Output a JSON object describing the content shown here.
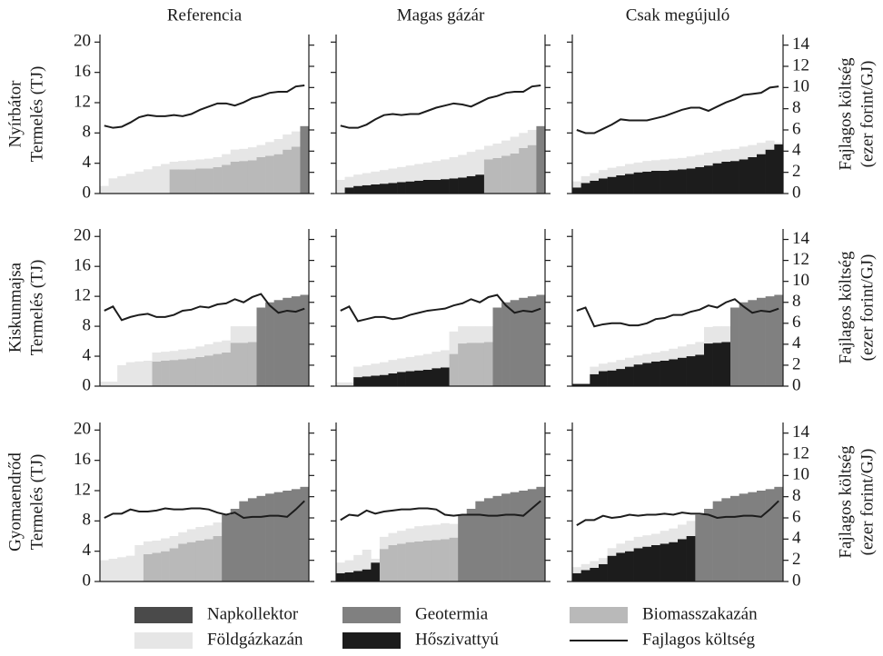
{
  "chart_data": {
    "type": "stacked-step-grid",
    "columns": [
      "Referencia",
      "Magas gázár",
      "Csak megújuló"
    ],
    "rows": [
      "Nyírbátor",
      "Kiskunmajsa",
      "Gyomaendrőd"
    ],
    "ylabel": "Termelés (TJ)",
    "y2label": [
      "Fajlagos költség",
      "(ezer forint/GJ)"
    ],
    "ylim": [
      0,
      21
    ],
    "yticks": [
      0,
      4,
      8,
      12,
      16,
      20
    ],
    "y2lim": [
      0,
      15
    ],
    "y2ticks": [
      0,
      2,
      4,
      6,
      8,
      10,
      12,
      14
    ],
    "legend": [
      {
        "name": "Napkollektor",
        "color": "#4a4a4a"
      },
      {
        "name": "Geotermia",
        "color": "#808080"
      },
      {
        "name": "Biomasszakazán",
        "color": "#b9b9b9"
      },
      {
        "name": "Földgázkazán",
        "color": "#e6e6e6"
      },
      {
        "name": "Hőszivattyú",
        "color": "#1c1c1c"
      },
      {
        "name": "Fajlagos költség",
        "color": "#1c1c1c",
        "line": true
      }
    ],
    "panels": [
      {
        "runs": [
          {
            "series": 3,
            "values": [
              1.0,
              2.0,
              2.3,
              2.6,
              2.9,
              3.2,
              3.6,
              3.9
            ]
          },
          {
            "series": 2,
            "values": [
              3.2,
              3.2,
              3.2,
              3.3,
              3.3,
              3.5,
              3.8,
              4.2,
              4.3,
              4.4,
              4.8,
              5.0,
              5.2,
              5.8,
              6.2
            ],
            "top_series": 3,
            "top": [
              1.0,
              1.1,
              1.2,
              1.2,
              1.3,
              1.3,
              1.4,
              1.6,
              1.6,
              1.7,
              1.6,
              1.8,
              2.0,
              2.0,
              2.0
            ]
          },
          {
            "series": 1,
            "values": [
              8.9
            ]
          }
        ],
        "cost": [
          6.4,
          6.2,
          6.3,
          6.7,
          7.2,
          7.4,
          7.3,
          7.3,
          7.4,
          7.3,
          7.5,
          7.9,
          8.2,
          8.5,
          8.5,
          8.3,
          8.6,
          9.0,
          9.2,
          9.5,
          9.6,
          9.6,
          10.1,
          10.2
        ]
      },
      {
        "runs": [
          {
            "series": 3,
            "values": [
              1.8
            ]
          },
          {
            "series": 4,
            "values": [
              0.8,
              1.0,
              1.1,
              1.2,
              1.3,
              1.4,
              1.5,
              1.6,
              1.7,
              1.8,
              1.8,
              1.9,
              2.0,
              2.1,
              2.3,
              2.5
            ],
            "top_series": 3,
            "top": [
              1.4,
              1.5,
              1.6,
              1.7,
              1.8,
              1.9,
              2.0,
              2.1,
              2.2,
              2.3,
              2.5,
              2.6,
              2.8,
              3.0,
              3.2,
              3.3
            ]
          },
          {
            "series": 2,
            "values": [
              4.5,
              4.7,
              5.0,
              5.3,
              6.0,
              6.4
            ],
            "top_series": 3,
            "top": [
              1.8,
              1.9,
              2.0,
              2.2,
              2.0,
              2.0
            ]
          },
          {
            "series": 1,
            "values": [
              8.9
            ]
          }
        ],
        "cost": [
          6.4,
          6.2,
          6.2,
          6.5,
          7.0,
          7.4,
          7.5,
          7.4,
          7.5,
          7.5,
          7.8,
          8.1,
          8.3,
          8.5,
          8.4,
          8.2,
          8.6,
          9.0,
          9.2,
          9.5,
          9.6,
          9.6,
          10.1,
          10.2
        ]
      },
      {
        "runs": [
          {
            "series": 4,
            "values": [
              0.8,
              1.4,
              1.7,
              2.0,
              2.2,
              2.4,
              2.6,
              2.8,
              2.9,
              3.0,
              3.0,
              3.1,
              3.2,
              3.3,
              3.5,
              3.7,
              4.0,
              4.2,
              4.3,
              4.5,
              4.8,
              5.2,
              5.8,
              6.5
            ],
            "top_series": 3,
            "top": [
              0.8,
              0.9,
              1.0,
              1.1,
              1.2,
              1.2,
              1.3,
              1.3,
              1.4,
              1.4,
              1.5,
              1.5,
              1.5,
              1.6,
              1.6,
              1.7,
              1.6,
              1.6,
              1.6,
              1.7,
              1.6,
              1.5,
              1.2,
              0.2
            ]
          }
        ],
        "cost": [
          6.0,
          5.7,
          5.7,
          6.1,
          6.5,
          7.0,
          6.9,
          6.9,
          6.9,
          7.1,
          7.3,
          7.6,
          7.9,
          8.1,
          8.1,
          7.8,
          8.2,
          8.6,
          8.9,
          9.3,
          9.4,
          9.5,
          10.0,
          10.1
        ]
      },
      {
        "runs": [
          {
            "series": 3,
            "values": [
              0.6,
              0.6,
              2.8,
              3.2,
              3.3,
              3.4
            ]
          },
          {
            "series": 2,
            "values": [
              3.3,
              3.4,
              3.5,
              3.6,
              3.7,
              3.9,
              4.1,
              4.3,
              4.5,
              5.8,
              5.8,
              5.9
            ],
            "top_series": 3,
            "top": [
              1.2,
              1.2,
              1.2,
              1.3,
              1.3,
              1.4,
              1.5,
              1.6,
              1.6,
              2.2,
              2.2,
              2.1
            ]
          },
          {
            "series": 1,
            "values": [
              10.5,
              11.2,
              11.5,
              11.8,
              12.0,
              12.2
            ]
          }
        ],
        "cost": [
          7.2,
          7.6,
          6.3,
          6.6,
          6.8,
          6.9,
          6.6,
          6.6,
          6.8,
          7.2,
          7.3,
          7.6,
          7.5,
          7.8,
          7.9,
          8.3,
          8.0,
          8.5,
          8.8,
          7.7,
          7.0,
          7.2,
          7.1,
          7.4
        ]
      },
      {
        "runs": [
          {
            "series": 3,
            "values": [
              0.5,
              0.5
            ]
          },
          {
            "series": 4,
            "values": [
              1.2,
              1.3,
              1.4,
              1.5,
              1.7,
              1.9,
              2.0,
              2.1,
              2.2,
              2.4,
              2.5
            ],
            "top_series": 3,
            "top": [
              1.4,
              1.5,
              1.6,
              1.7,
              1.8,
              1.8,
              1.9,
              2.0,
              2.1,
              2.2,
              2.3
            ]
          },
          {
            "series": 2,
            "values": [
              4.3,
              5.7,
              5.8,
              5.8,
              5.9
            ],
            "top_series": 3,
            "top": [
              3.0,
              2.3,
              2.2,
              2.2,
              2.1
            ]
          },
          {
            "series": 1,
            "values": [
              10.5,
              11.2,
              11.5,
              11.8,
              12.0,
              12.2
            ]
          }
        ],
        "cost": [
          7.2,
          7.6,
          6.2,
          6.4,
          6.6,
          6.6,
          6.4,
          6.5,
          6.8,
          7.0,
          7.2,
          7.3,
          7.4,
          7.7,
          7.9,
          8.3,
          8.0,
          8.5,
          8.7,
          7.7,
          7.0,
          7.2,
          7.1,
          7.4
        ]
      },
      {
        "runs": [
          {
            "series": 4,
            "values": [
              0.3,
              0.3,
              1.6,
              2.0,
              2.1,
              2.3,
              2.6,
              2.9,
              3.1,
              3.3,
              3.4,
              3.6,
              3.8,
              4.0,
              4.2,
              5.7,
              5.8,
              5.9
            ],
            "top_series": 3,
            "top": [
              0,
              0,
              1.0,
              1.0,
              1.1,
              1.2,
              1.2,
              1.2,
              1.2,
              1.2,
              1.3,
              1.4,
              1.5,
              1.6,
              1.7,
              2.2,
              2.2,
              2.1
            ]
          },
          {
            "series": 1,
            "values": [
              10.5,
              11.2,
              11.5,
              11.8,
              12.0,
              12.2
            ]
          }
        ],
        "cost": [
          7.2,
          7.5,
          5.7,
          5.9,
          6.0,
          6.0,
          5.8,
          5.8,
          6.0,
          6.4,
          6.5,
          6.8,
          6.8,
          7.1,
          7.3,
          7.7,
          7.5,
          8.0,
          8.3,
          7.6,
          7.0,
          7.2,
          7.1,
          7.4
        ]
      },
      {
        "runs": [
          {
            "series": 3,
            "values": [
              2.8,
              3.0,
              3.2,
              3.4,
              4.8
            ]
          },
          {
            "series": 2,
            "values": [
              3.6,
              3.8,
              4.0,
              4.4,
              5.0,
              5.2,
              5.4,
              5.6,
              6.0
            ],
            "top_series": 3,
            "top": [
              1.7,
              1.6,
              1.7,
              1.6,
              1.5,
              1.7,
              1.8,
              1.8,
              1.8
            ]
          },
          {
            "series": 1,
            "values": [
              8.8,
              9.6,
              10.6,
              11.0,
              11.3,
              11.6,
              11.8,
              12.0,
              12.2,
              12.5
            ]
          }
        ],
        "cost": [
          6.0,
          6.4,
          6.4,
          6.8,
          6.6,
          6.6,
          6.7,
          6.9,
          6.8,
          6.8,
          6.9,
          6.9,
          6.8,
          6.5,
          6.3,
          6.5,
          6.0,
          6.1,
          6.1,
          6.2,
          6.2,
          6.1,
          6.8,
          7.6
        ]
      },
      {
        "runs": [
          {
            "series": 4,
            "values": [
              1.1,
              1.2,
              1.4,
              1.6,
              2.5
            ],
            "top_series": 3,
            "top": [
              1.4,
              1.6,
              2.1,
              2.6,
              0.5
            ]
          },
          {
            "series": 2,
            "values": [
              4.3,
              4.8,
              5.0,
              5.2,
              5.3,
              5.4,
              5.5,
              5.6,
              5.8
            ],
            "top_series": 3,
            "top": [
              1.6,
              1.6,
              1.7,
              1.8,
              2.0,
              2.0,
              2.0,
              2.1,
              1.8
            ]
          },
          {
            "series": 1,
            "values": [
              8.8,
              9.6,
              10.6,
              11.0,
              11.3,
              11.6,
              11.8,
              12.0,
              12.2,
              12.5
            ]
          }
        ],
        "cost": [
          5.8,
          6.3,
          6.2,
          6.7,
          6.4,
          6.6,
          6.7,
          6.8,
          6.8,
          6.9,
          6.9,
          6.8,
          6.3,
          6.2,
          6.3,
          6.3,
          6.3,
          6.2,
          6.2,
          6.3,
          6.3,
          6.2,
          6.9,
          7.6
        ]
      },
      {
        "runs": [
          {
            "series": 4,
            "values": [
              1.1,
              1.5,
              1.8,
              2.3,
              3.4,
              3.8,
              4.0,
              4.4,
              4.6,
              4.8,
              5.0,
              5.2,
              5.6,
              6.0
            ],
            "top_series": 3,
            "top": [
              0.8,
              0.8,
              0.9,
              0.8,
              1.0,
              1.2,
              1.4,
              1.5,
              1.5,
              1.5,
              1.7,
              1.8,
              1.9,
              2.0
            ]
          },
          {
            "series": 1,
            "values": [
              8.8,
              9.6,
              10.6,
              11.0,
              11.3,
              11.6,
              11.8,
              12.0,
              12.2,
              12.5
            ]
          }
        ],
        "cost": [
          5.3,
          5.8,
          5.8,
          6.2,
          6.0,
          6.1,
          6.3,
          6.2,
          6.3,
          6.3,
          6.4,
          6.3,
          6.5,
          6.4,
          6.4,
          6.3,
          6.0,
          6.1,
          6.1,
          6.2,
          6.2,
          6.1,
          6.8,
          7.6
        ]
      }
    ]
  }
}
